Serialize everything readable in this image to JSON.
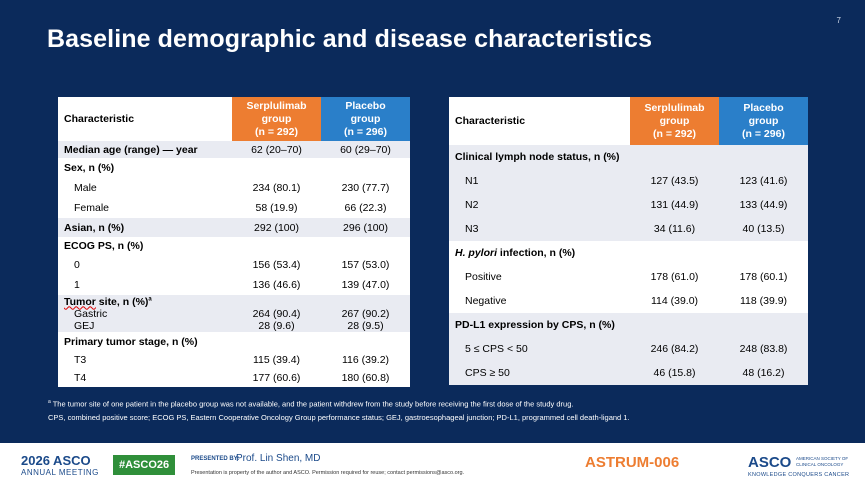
{
  "page_number": "7",
  "title": "Baseline demographic and disease characteristics",
  "left_table": {
    "headers": {
      "characteristic": "Characteristic",
      "serp": [
        "Serplulimab",
        "group",
        "(n = 292)"
      ],
      "plac": [
        "Placebo",
        "group",
        "(n = 296)"
      ]
    },
    "rows": {
      "median_age": {
        "label": "Median age (range) — year",
        "serp": "62 (20–70)",
        "plac": "60 (29–70)"
      },
      "sex": {
        "label": "Sex, n (%)"
      },
      "male": {
        "label": "Male",
        "serp": "234 (80.1)",
        "plac": "230 (77.7)"
      },
      "female": {
        "label": "Female",
        "serp": "58 (19.9)",
        "plac": "66 (22.3)"
      },
      "asian": {
        "label": "Asian, n (%)",
        "serp": "292 (100)",
        "plac": "296 (100)"
      },
      "ecog": {
        "label": "ECOG PS, n (%)"
      },
      "ecog0": {
        "label": "0",
        "serp": "156 (53.4)",
        "plac": "157 (53.0)"
      },
      "ecog1": {
        "label": "1",
        "serp": "136 (46.6)",
        "plac": "139 (47.0)"
      },
      "tumor_site": {
        "label_word": "Tumor",
        "label_rest": " site, n (%)",
        "label_sup": "a"
      },
      "gastric": {
        "label": "Gastric",
        "serp": "264 (90.4)",
        "plac": "267 (90.2)"
      },
      "gej": {
        "label": "GEJ",
        "serp": "28 (9.6)",
        "plac": "28 (9.5)"
      },
      "stage": {
        "label": "Primary tumor stage, n (%)"
      },
      "t3": {
        "label": "T3",
        "serp": "115 (39.4)",
        "plac": "116 (39.2)"
      },
      "t4": {
        "label": "T4",
        "serp": "177 (60.6)",
        "plac": "180 (60.8)"
      }
    }
  },
  "right_table": {
    "headers": {
      "characteristic": "Characteristic",
      "serp": [
        "Serplulimab",
        "group",
        "(n = 292)"
      ],
      "plac": [
        "Placebo",
        "group",
        "(n = 296)"
      ]
    },
    "rows": {
      "lymph": {
        "label": "Clinical lymph node status, n (%)"
      },
      "n1": {
        "label": "N1",
        "serp": "127 (43.5)",
        "plac": "123 (41.6)"
      },
      "n2": {
        "label": "N2",
        "serp": "131 (44.9)",
        "plac": "133 (44.9)"
      },
      "n3": {
        "label": "N3",
        "serp": "34 (11.6)",
        "plac": "40 (13.5)"
      },
      "hpylori": {
        "label_italic": "H. pylori",
        "label_rest": " infection, n (%)"
      },
      "positive": {
        "label": "Positive",
        "serp": "178 (61.0)",
        "plac": "178 (60.1)"
      },
      "negative": {
        "label": "Negative",
        "serp": "114 (39.0)",
        "plac": "118 (39.9)"
      },
      "pdl1": {
        "label": "PD-L1 expression by CPS, n (%)"
      },
      "cps_mid": {
        "label": "5 ≤ CPS < 50",
        "serp": "246 (84.2)",
        "plac": "248 (83.8)"
      },
      "cps_high": {
        "label": "CPS ≥ 50",
        "serp": "46 (15.8)",
        "plac": "48 (16.2)"
      }
    }
  },
  "footnotes": {
    "a_sup": "a",
    "a": " The tumor site of one patient in the placebo group was not available, and the patient withdrew from the study before receiving the first dose of the study drug.",
    "abbr": "CPS, combined positive score; ECOG PS, Eastern Cooperative Oncology Group performance status; GEJ, gastroesophageal junction; PD-L1, programmed cell death-ligand 1."
  },
  "footer": {
    "meeting_year_name": "2026 ASCO",
    "meeting_sub": "ANNUAL MEETING",
    "hashtag": "#ASCO26",
    "presented_by": "PRESENTED BY:",
    "presenter": "Prof. Lin Shen, MD",
    "property": "Presentation is property of the author and ASCO. Permission required for reuse; contact permissions@asco.org.",
    "study": "ASTRUM-006",
    "asco": "ASCO",
    "asco_sub": [
      "AMERICAN SOCIETY OF",
      "CLINICAL ONCOLOGY"
    ],
    "asco_tagline": "KNOWLEDGE CONQUERS CANCER"
  },
  "colors": {
    "background": "#0b2a5b",
    "serplulimab_header": "#ed7d31",
    "placebo_header": "#2a7fc9",
    "row_shade": "#e9ebf2",
    "study_name": "#ed7d31"
  }
}
